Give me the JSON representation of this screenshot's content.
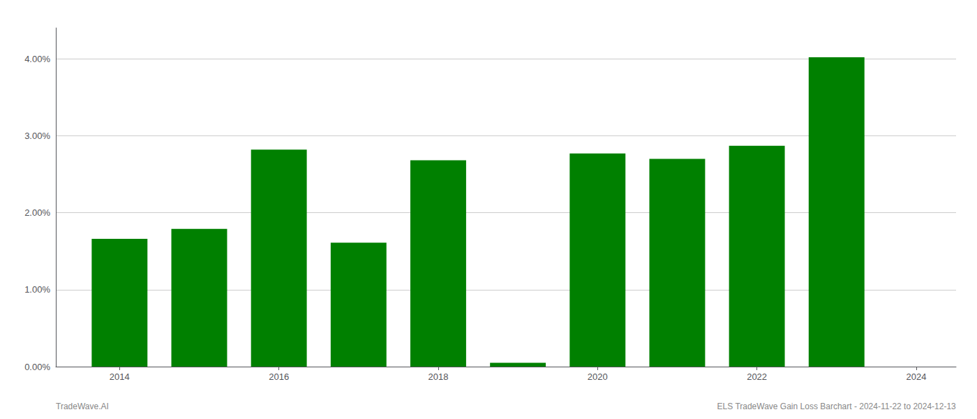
{
  "chart_data": {
    "type": "bar",
    "x": [
      2014,
      2015,
      2016,
      2017,
      2018,
      2019,
      2020,
      2021,
      2022,
      2023
    ],
    "values": [
      0.0166,
      0.0179,
      0.0282,
      0.0161,
      0.0268,
      0.0005,
      0.0277,
      0.027,
      0.0287,
      0.0402
    ],
    "color": "#008000",
    "xlim": [
      2013.2,
      2024.5
    ],
    "xticks": [
      2014,
      2016,
      2018,
      2020,
      2022,
      2024
    ],
    "ylim": [
      0,
      0.044
    ],
    "yticks": [
      {
        "value": 0.0,
        "label": "0.00%"
      },
      {
        "value": 0.01,
        "label": "1.00%"
      },
      {
        "value": 0.02,
        "label": "2.00%"
      },
      {
        "value": 0.03,
        "label": "3.00%"
      },
      {
        "value": 0.04,
        "label": "4.00%"
      }
    ],
    "grid": true,
    "annotations": [
      "TradeWave.AI",
      "ELS TradeWave Gain Loss Barchart - 2024-11-22 to 2024-12-13"
    ]
  }
}
